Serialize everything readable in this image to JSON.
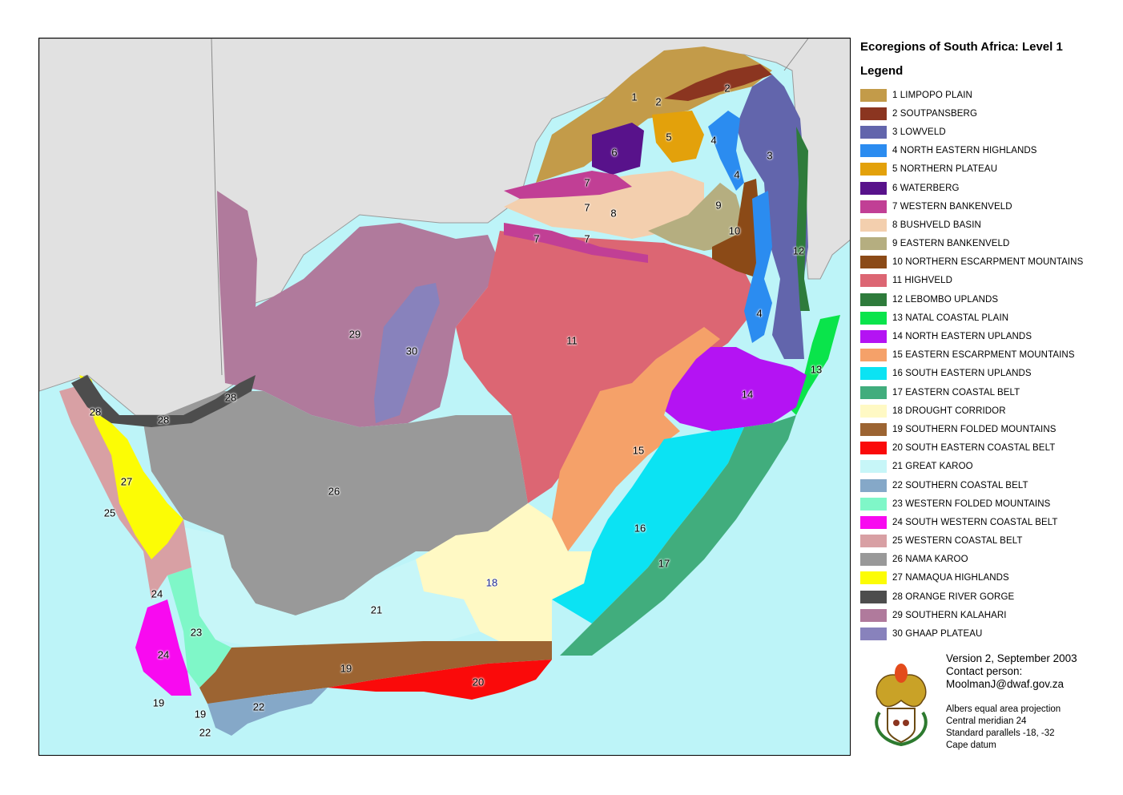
{
  "title": "Ecoregions of South Africa: Level 1",
  "legend_heading": "Legend",
  "regions": [
    {
      "num": "1",
      "name": "LIMPOPO PLAIN",
      "color": "#c39b49"
    },
    {
      "num": "2",
      "name": "SOUTPANSBERG",
      "color": "#8b3520"
    },
    {
      "num": "3",
      "name": "LOWVELD",
      "color": "#6265ac"
    },
    {
      "num": "4",
      "name": "NORTH EASTERN HIGHLANDS",
      "color": "#2b8cf0"
    },
    {
      "num": "5",
      "name": "NORTHERN PLATEAU",
      "color": "#e3a10b"
    },
    {
      "num": "6",
      "name": "WATERBERG",
      "color": "#58128b"
    },
    {
      "num": "7",
      "name": "WESTERN BANKENVELD",
      "color": "#c13f95"
    },
    {
      "num": "8",
      "name": "BUSHVELD BASIN",
      "color": "#f3cfae"
    },
    {
      "num": "9",
      "name": "EASTERN BANKENVELD",
      "color": "#b5ae80"
    },
    {
      "num": "10",
      "name": "NORTHERN ESCARPMENT MOUNTAINS",
      "color": "#8b4a17"
    },
    {
      "num": "11",
      "name": "HIGHVELD",
      "color": "#dc6673"
    },
    {
      "num": "12",
      "name": "LEBOMBO UPLANDS",
      "color": "#2e7b3b"
    },
    {
      "num": "13",
      "name": "NATAL COASTAL PLAIN",
      "color": "#0ae44b"
    },
    {
      "num": "14",
      "name": "NORTH EASTERN UPLANDS",
      "color": "#b413f3"
    },
    {
      "num": "15",
      "name": "EASTERN ESCARPMENT MOUNTAINS",
      "color": "#f5a169"
    },
    {
      "num": "16",
      "name": "SOUTH EASTERN UPLANDS",
      "color": "#0be3f3"
    },
    {
      "num": "17",
      "name": "EASTERN COASTAL BELT",
      "color": "#41ad7d"
    },
    {
      "num": "18",
      "name": "DROUGHT CORRIDOR",
      "color": "#fff9c4"
    },
    {
      "num": "19",
      "name": "SOUTHERN FOLDED MOUNTAINS",
      "color": "#9c6432"
    },
    {
      "num": "20",
      "name": "SOUTH EASTERN COASTAL BELT",
      "color": "#fa0a0a"
    },
    {
      "num": "21",
      "name": "GREAT KAROO",
      "color": "#c7f6f8"
    },
    {
      "num": "22",
      "name": "SOUTHERN COASTAL BELT",
      "color": "#85a8c8"
    },
    {
      "num": "23",
      "name": "WESTERN FOLDED MOUNTAINS",
      "color": "#7ff7c8"
    },
    {
      "num": "24",
      "name": "SOUTH WESTERN COASTAL BELT",
      "color": "#f80af0"
    },
    {
      "num": "25",
      "name": "WESTERN COASTAL BELT",
      "color": "#d8a0a4"
    },
    {
      "num": "26",
      "name": "NAMA KAROO",
      "color": "#999999"
    },
    {
      "num": "27",
      "name": "NAMAQUA HIGHLANDS",
      "color": "#fcfc05"
    },
    {
      "num": "28",
      "name": "ORANGE RIVER GORGE",
      "color": "#4d4d4d"
    },
    {
      "num": "29",
      "name": "SOUTHERN KALAHARI",
      "color": "#b07a9c"
    },
    {
      "num": "30",
      "name": "GHAAP PLATEAU",
      "color": "#8882bc"
    }
  ],
  "map_labels": [
    "1",
    "2",
    "2",
    "5",
    "6",
    "4",
    "4",
    "3",
    "7",
    "7",
    "8",
    "9",
    "7",
    "7",
    "10",
    "12",
    "11",
    "4",
    "29",
    "30",
    "13",
    "14",
    "28",
    "28",
    "28",
    "15",
    "27",
    "26",
    "25",
    "16",
    "17",
    "18",
    "24",
    "21",
    "23",
    "24",
    "19",
    "20",
    "19",
    "19",
    "22",
    "22"
  ],
  "info": {
    "version": "Version 2, September 2003",
    "contact_label": "Contact person:",
    "contact_email": "MoolmanJ@dwaf.gov.za"
  },
  "projection": {
    "line1": "Albers equal area projection",
    "line2": "Central meridian 24",
    "line3": "Standard parallels -18, -32",
    "line4": "Cape datum"
  },
  "colors": {
    "sea": "#bdf4f8",
    "neighbor_land": "#e1e1e1"
  }
}
